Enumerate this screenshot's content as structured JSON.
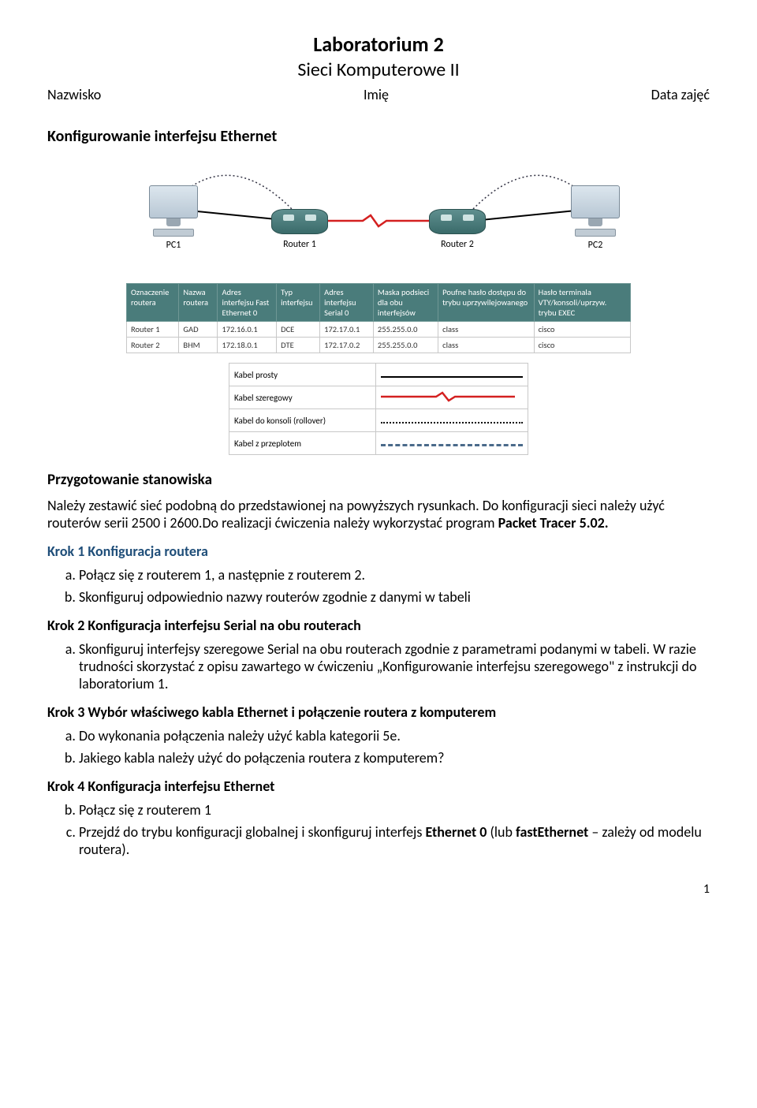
{
  "header": {
    "title": "Laboratorium 2",
    "subtitle": "Sieci Komputerowe II",
    "left": "Nazwisko",
    "center": "Imię",
    "right": "Data zajęć"
  },
  "section1_heading": "Konfigurowanie interfejsu Ethernet",
  "topology": {
    "pc1": "PC1",
    "pc2": "PC2",
    "router1": "Router 1",
    "router2": "Router 2",
    "colors": {
      "router": "#3a6b6a",
      "serial_line": "#d42020",
      "dashed": "#4a6a8a"
    }
  },
  "router_table": {
    "columns": [
      "Oznaczenie routera",
      "Nazwa routera",
      "Adres interfejsu Fast Ethernet 0",
      "Typ interfejsu",
      "Adres interfejsu Serial 0",
      "Maska podsieci dla obu interfejsów",
      "Poufne hasło dostępu do trybu uprzywilejowanego",
      "Hasło terminala VTY/konsoli/uprzyw. trybu EXEC"
    ],
    "rows": [
      [
        "Router 1",
        "GAD",
        "172.16.0.1",
        "DCE",
        "172.17.0.1",
        "255.255.0.0",
        "class",
        "cisco"
      ],
      [
        "Router 2",
        "BHM",
        "172.18.0.1",
        "DTE",
        "172.17.0.2",
        "255.255.0.0",
        "class",
        "cisco"
      ]
    ]
  },
  "legend": [
    {
      "label": "Kabel prosty",
      "type": "solid"
    },
    {
      "label": "Kabel szeregowy",
      "type": "zig"
    },
    {
      "label": "Kabel do konsoli (rollover)",
      "type": "dotted"
    },
    {
      "label": "Kabel z przeplotem",
      "type": "dashed"
    }
  ],
  "prep_heading": "Przygotowanie stanowiska",
  "prep_text_1": "Należy zestawić sieć podobną do przedstawionej na powyższych rysunkach. Do konfiguracji sieci należy użyć routerów serii 2500 i 2600.Do realizacji ćwiczenia należy wykorzystać program ",
  "prep_bold": "Packet Tracer 5.02.",
  "step1_heading": "Krok 1 Konfiguracja routera",
  "step1_a": "Połącz się z routerem 1, a następnie z routerem 2.",
  "step1_b": "Skonfiguruj odpowiednio nazwy routerów zgodnie z danymi w tabeli",
  "step2_heading": "Krok 2 Konfiguracja interfejsu Serial na obu routerach",
  "step2_a": "Skonfiguruj interfejsy szeregowe Serial na obu routerach zgodnie z parametrami podanymi w tabeli. W razie trudności skorzystać z opisu zawartego w ćwiczeniu „Konfigurowanie interfejsu szeregowego\" z instrukcji do laboratorium 1.",
  "step3_heading": "Krok 3 Wybór właściwego kabla Ethernet i połączenie routera z komputerem",
  "step3_a": "Do wykonania połączenia należy użyć kabla kategorii 5e.",
  "step3_b": "Jakiego kabla należy użyć do połączenia routera z komputerem?",
  "step4_heading": "Krok 4 Konfiguracja interfejsu Ethernet",
  "step4_b": "Połącz się z routerem 1",
  "step4_c_1": "Przejdź do trybu konfiguracji globalnej i skonfiguruj interfejs ",
  "step4_c_b1": "Ethernet 0",
  "step4_c_2": " (lub ",
  "step4_c_b2": "fastEthernet",
  "step4_c_3": " – zależy od modelu routera).",
  "page_number": "1"
}
